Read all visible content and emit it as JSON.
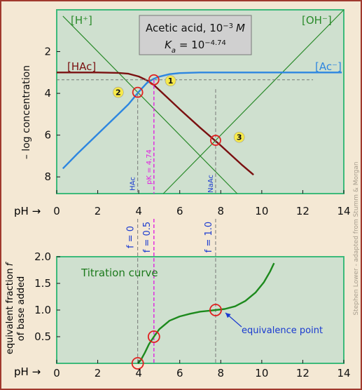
{
  "colors": {
    "panel_bg": "#cfe0cf",
    "panel_border": "#3dba7a",
    "frame_border": "#a0392e",
    "hac": "#7a1010",
    "ac": "#2d86e0",
    "diagonal": "#2a8a2a",
    "pk_line": "#e020e0",
    "guide": "#777777",
    "marker": "#e02020",
    "badge": "#f6e94a",
    "title_box": "#d0d0d0",
    "label_blue": "#1a3ad0"
  },
  "credit": "Stephen Lower - adapted from Stumm & Morgan",
  "chart_data": [
    {
      "type": "line",
      "title_line1": "Acetic acid, 10",
      "title_exp1": "−3",
      "title_unit": "M",
      "title_line2_k": "K",
      "title_line2_sub": "a",
      "title_line2_eq": " = 10",
      "title_exp2": "−4.74",
      "xlabel": "pH →",
      "ylabel": "– log concentration",
      "xlim": [
        0,
        14
      ],
      "ylim": [
        0,
        8.8
      ],
      "y_inverted": true,
      "xticks": [
        "0",
        "2",
        "4",
        "6",
        "8",
        "10",
        "12",
        "14"
      ],
      "yticks": [
        "2",
        "4",
        "6",
        "8"
      ],
      "ytick_values": [
        2,
        4,
        6,
        8
      ],
      "series": [
        {
          "name": "[H⁺]",
          "x": [
            0.3,
            8.8
          ],
          "y": [
            0.3,
            8.8
          ]
        },
        {
          "name": "[OH⁻]",
          "x": [
            5.2,
            14
          ],
          "y": [
            8.8,
            0
          ]
        },
        {
          "name": "[HAc]",
          "x": [
            0,
            1,
            2,
            3,
            3.5,
            4,
            4.4,
            4.74,
            5,
            5.5,
            6,
            7,
            8,
            9,
            9.6
          ],
          "y": [
            3.0,
            3.0,
            3.0,
            3.02,
            3.06,
            3.19,
            3.38,
            3.6,
            3.84,
            4.3,
            4.76,
            5.65,
            6.5,
            7.4,
            7.9
          ]
        },
        {
          "name": "[Ac⁻]",
          "x": [
            0.3,
            1,
            2,
            3,
            3.5,
            4,
            4.4,
            4.74,
            5,
            5.5,
            6,
            7,
            8,
            13.9
          ],
          "y": [
            7.6,
            6.9,
            5.95,
            5.0,
            4.52,
            3.93,
            3.5,
            3.3,
            3.2,
            3.08,
            3.03,
            3.0,
            3.0,
            3.0
          ]
        }
      ],
      "guides": [
        {
          "label": "HAc",
          "x": 3.95,
          "color": "guide"
        },
        {
          "label": "pK = 4.74",
          "x": 4.74,
          "color": "pk_line"
        },
        {
          "label": "NaAc",
          "x": 7.75,
          "color": "guide"
        }
      ],
      "h_guide": {
        "y": 3.35,
        "x_from": 0,
        "x_to": 12.5
      },
      "points": [
        {
          "label": "1",
          "x": 4.74,
          "y": 3.35,
          "badge_x": 5.55,
          "badge_y": 3.4
        },
        {
          "label": "2",
          "x": 3.95,
          "y": 3.95,
          "badge_x": 3.0,
          "badge_y": 3.95
        },
        {
          "label": "3",
          "x": 7.75,
          "y": 6.25,
          "badge_x": 8.9,
          "badge_y": 6.1
        }
      ]
    },
    {
      "type": "line",
      "title": "Titration curve",
      "xlabel": "pH →",
      "ylabel_line1": "equivalent fraction",
      "ylabel_f": "f",
      "ylabel_line2": "of base added",
      "xlim": [
        0,
        14
      ],
      "ylim": [
        0,
        2.0
      ],
      "xticks": [
        "0",
        "2",
        "4",
        "6",
        "8",
        "10",
        "12",
        "14"
      ],
      "yticks": [
        "0.5",
        "1.0",
        "1.5",
        "2.0"
      ],
      "ytick_values": [
        0.5,
        1.0,
        1.5,
        2.0
      ],
      "series": [
        {
          "name": "titration",
          "x": [
            3.95,
            4.1,
            4.3,
            4.5,
            4.74,
            5.0,
            5.5,
            6.0,
            6.5,
            7.0,
            7.5,
            7.75,
            8.2,
            8.7,
            9.2,
            9.7,
            10.1,
            10.4,
            10.6
          ],
          "y": [
            0.0,
            0.06,
            0.2,
            0.36,
            0.5,
            0.64,
            0.8,
            0.88,
            0.93,
            0.97,
            0.99,
            1.0,
            1.02,
            1.07,
            1.17,
            1.33,
            1.52,
            1.72,
            1.88
          ]
        }
      ],
      "guides": [
        {
          "label": "f = 0",
          "x": 3.95,
          "color": "guide"
        },
        {
          "label": "f = 0.5",
          "x": 4.74,
          "color": "pk_line"
        },
        {
          "label": "f = 1.0",
          "x": 7.75,
          "color": "guide"
        }
      ],
      "points": [
        {
          "x": 3.95,
          "y": 0.0
        },
        {
          "x": 4.74,
          "y": 0.5
        },
        {
          "x": 7.75,
          "y": 1.0
        }
      ],
      "annotation": {
        "text": "equivalence point",
        "x": 7.75,
        "y": 1.0
      }
    }
  ]
}
